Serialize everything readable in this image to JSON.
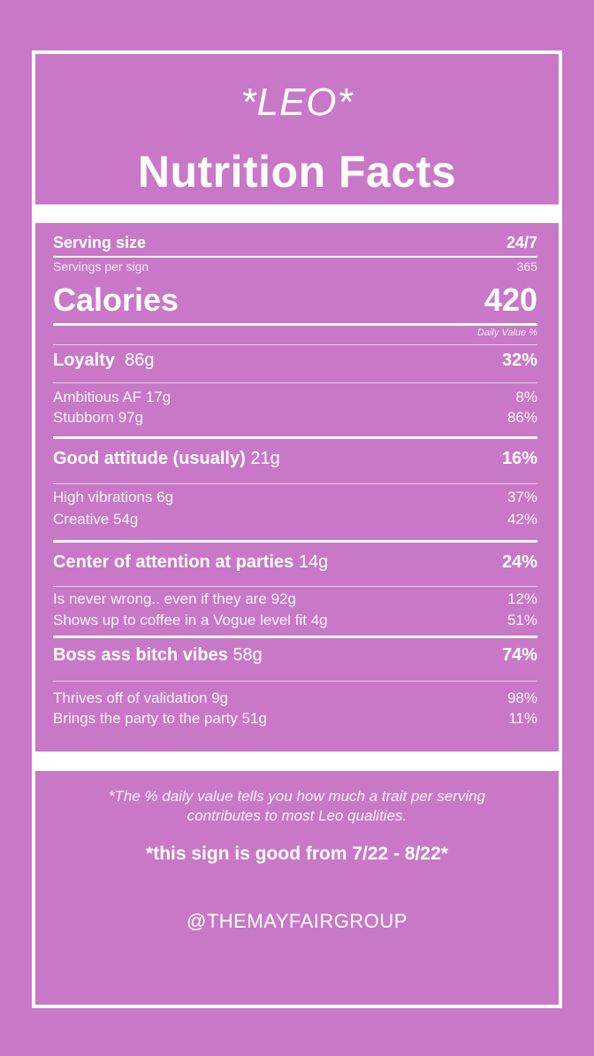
{
  "header": {
    "sign": "*LEO*",
    "title": "Nutrition Facts"
  },
  "serving": {
    "size_label": "Serving size",
    "size_value": "24/7",
    "per_label": "Servings per sign",
    "per_value": "365"
  },
  "calories": {
    "label": "Calories",
    "value": "420",
    "dv_note": "Daily Value %"
  },
  "sections": [
    {
      "main": {
        "label": "Loyalty",
        "amount": "86g",
        "dv": "32%"
      },
      "subs": [
        {
          "text": "Ambitious AF 17g",
          "dv": "8%"
        },
        {
          "text": "Stubborn 97g",
          "dv": "86%"
        }
      ]
    },
    {
      "main": {
        "label": "Good attitude (usually)",
        "amount": "21g",
        "dv": "16%"
      },
      "subs": [
        {
          "text": "High vibrations 6g",
          "dv": "37%"
        },
        {
          "text": "Creative 54g",
          "dv": "42%"
        }
      ]
    },
    {
      "main": {
        "label": "Center of attention at parties",
        "amount": "14g",
        "dv": "24%"
      },
      "subs": [
        {
          "text": "Is never wrong.. even if they are 92g",
          "dv": "12%"
        },
        {
          "text": "Shows up to coffee in a Vogue level fit 4g",
          "dv": "51%"
        }
      ]
    },
    {
      "main": {
        "label": "Boss ass bitch vibes",
        "amount": "58g",
        "dv": "74%"
      },
      "subs": [
        {
          "text": "Thrives off of validation 9g",
          "dv": "98%"
        },
        {
          "text": "Brings the party to the party 51g",
          "dv": "11%"
        }
      ]
    }
  ],
  "footer": {
    "note": "*The % daily value tells you how much a trait per serving contributes to most Leo qualities.",
    "good_dates": "*this sign is good from 7/22 - 8/22*",
    "handle": "@THEMAYFAIRGROUP"
  },
  "colors": {
    "background": "#c978c8",
    "text": "#ffffff"
  }
}
